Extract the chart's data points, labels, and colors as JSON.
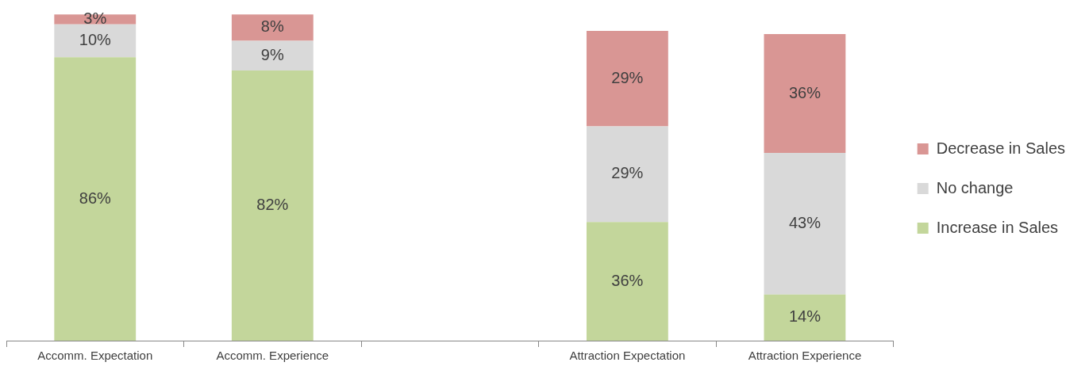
{
  "chart_data": {
    "type": "bar",
    "stacked": true,
    "categories": [
      "Accomm. Expectation",
      "Accomm. Experience",
      null,
      "Attraction Expectation",
      "Attraction Experience"
    ],
    "series": [
      {
        "name": "Increase in Sales",
        "color": "#c3d69b",
        "values": [
          86,
          82,
          null,
          36,
          14
        ],
        "value_labels": [
          "86%",
          "82%",
          null,
          "36%",
          "14%"
        ]
      },
      {
        "name": "No change",
        "color": "#d9d9d9",
        "values": [
          10,
          9,
          null,
          29,
          43
        ],
        "value_labels": [
          "10%",
          "9%",
          null,
          "29%",
          "43%"
        ]
      },
      {
        "name": "Decrease in Sales",
        "color": "#d99694",
        "values": [
          3,
          8,
          null,
          29,
          36
        ],
        "value_labels": [
          "3%",
          "8%",
          null,
          "29%",
          "36%"
        ]
      }
    ],
    "tick_labels": "x",
    "grid": false,
    "legend": "right"
  }
}
